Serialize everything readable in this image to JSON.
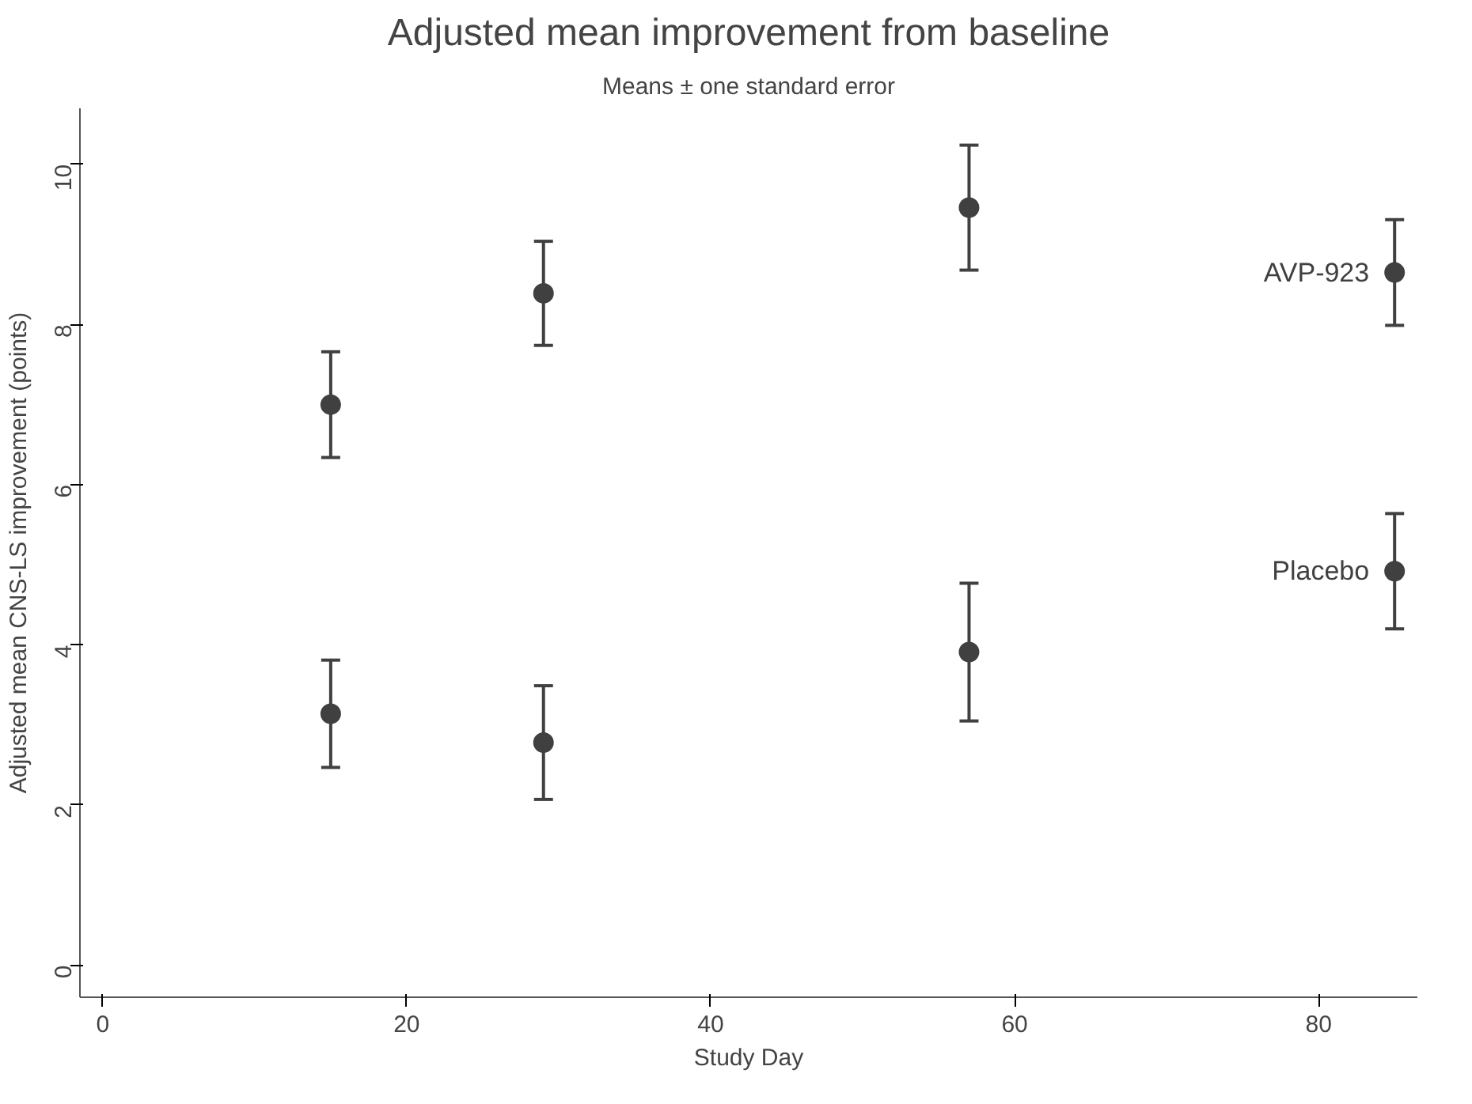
{
  "chart_data": {
    "type": "scatter",
    "title": "Adjusted mean improvement from baseline",
    "subtitle": "Means ± one standard error",
    "xlabel": "Study Day",
    "ylabel": "Adjusted mean CNS-LS improvement (points)",
    "x": [
      15,
      29,
      57,
      85
    ],
    "series": [
      {
        "name": "AVP-923",
        "color": "#404040",
        "values": [
          7.0,
          8.39,
          9.46,
          8.65
        ],
        "errors": [
          0.66,
          0.65,
          0.78,
          0.66
        ]
      },
      {
        "name": "Placebo",
        "color": "#404040",
        "values": [
          3.14,
          2.78,
          3.91,
          4.92
        ],
        "errors": [
          0.67,
          0.71,
          0.86,
          0.72
        ]
      }
    ],
    "xlim": [
      -1.5,
      86.5
    ],
    "ylim": [
      -0.4,
      10.7
    ],
    "xticks": [
      0,
      20,
      40,
      60,
      80
    ],
    "yticks": [
      0,
      2,
      4,
      6,
      8,
      10
    ],
    "marker": "circle",
    "grid": false
  }
}
